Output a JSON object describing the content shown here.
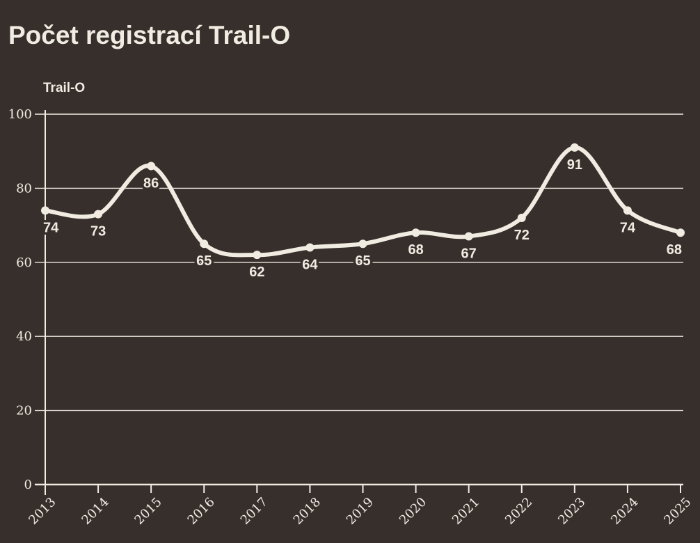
{
  "title": "Počet registrací Trail-O",
  "chart_data": {
    "type": "line",
    "title": "Počet registrací Trail-O",
    "series_label": "Trail-O",
    "x": [
      2013,
      2014,
      2015,
      2016,
      2017,
      2018,
      2019,
      2020,
      2021,
      2022,
      2023,
      2024,
      2025
    ],
    "values": [
      74,
      73,
      86,
      65,
      62,
      64,
      65,
      68,
      67,
      72,
      91,
      74,
      68
    ],
    "ylim": [
      0,
      100
    ],
    "yticks": [
      0,
      20,
      40,
      60,
      80,
      100
    ],
    "grid": "horizontal",
    "legend_position": "top-left",
    "data_labels": true,
    "colors": {
      "background": "#372F2C",
      "foreground": "#F0ECE2"
    }
  }
}
